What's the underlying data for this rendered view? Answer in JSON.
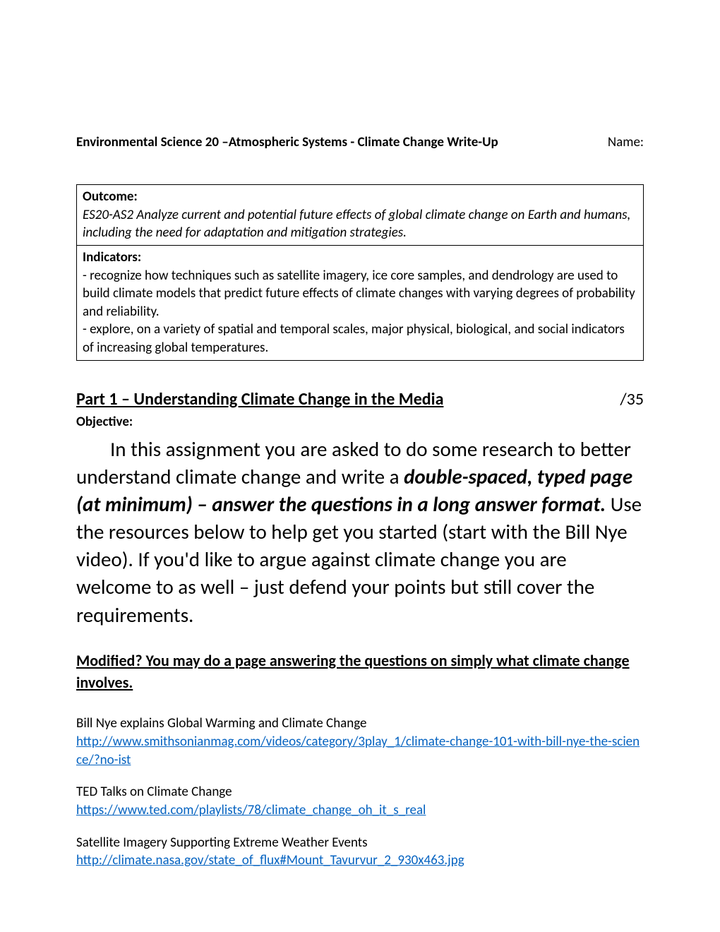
{
  "header": {
    "title": "Environmental Science 20 –Atmospheric Systems - Climate Change Write-Up",
    "name_label": "Name:"
  },
  "outcome": {
    "label": "Outcome:",
    "code": "ES20-AS2",
    "description": " Analyze current and potential future effects of global climate change on Earth and humans, including the need for adaptation and mitigation strategies."
  },
  "indicators": {
    "label": "Indicators:",
    "text": "- recognize how techniques such as satellite imagery, ice core samples, and dendrology are used to build climate models that predict future effects of climate changes with varying degrees of probability and reliability.\n- explore, on a variety of spatial and temporal scales, major physical, biological, and social indicators of increasing global temperatures."
  },
  "part1": {
    "title": "Part 1 – Understanding Climate Change in the Media",
    "score": "/35",
    "objective_label": "Objective:",
    "body_pre": "In this assignment you are asked to do some research to better understand climate change and write a ",
    "body_bold": "double-spaced, typed page (at minimum) – answer the questions in a long answer format.",
    "body_post": " Use the resources below to help get you started (start with the Bill Nye video). If you'd like to argue against climate change you are welcome to as well – just defend your points but still cover the requirements."
  },
  "modified": "Modified? You may do a page answering the questions on simply what climate change involves.",
  "resources": [
    {
      "title": "Bill Nye explains Global Warming and Climate Change",
      "link": "http://www.smithsonianmag.com/videos/category/3play_1/climate-change-101-with-bill-nye-the-science/?no-ist"
    },
    {
      "title": "TED Talks on Climate Change",
      "link": "https://www.ted.com/playlists/78/climate_change_oh_it_s_real"
    },
    {
      "title": "Satellite Imagery Supporting Extreme Weather Events",
      "link": "http://climate.nasa.gov/state_of_flux#Mount_Tavurvur_2_930x463.jpg"
    }
  ],
  "colors": {
    "text": "#000000",
    "link": "#0563c1",
    "background": "#ffffff",
    "border": "#000000"
  }
}
